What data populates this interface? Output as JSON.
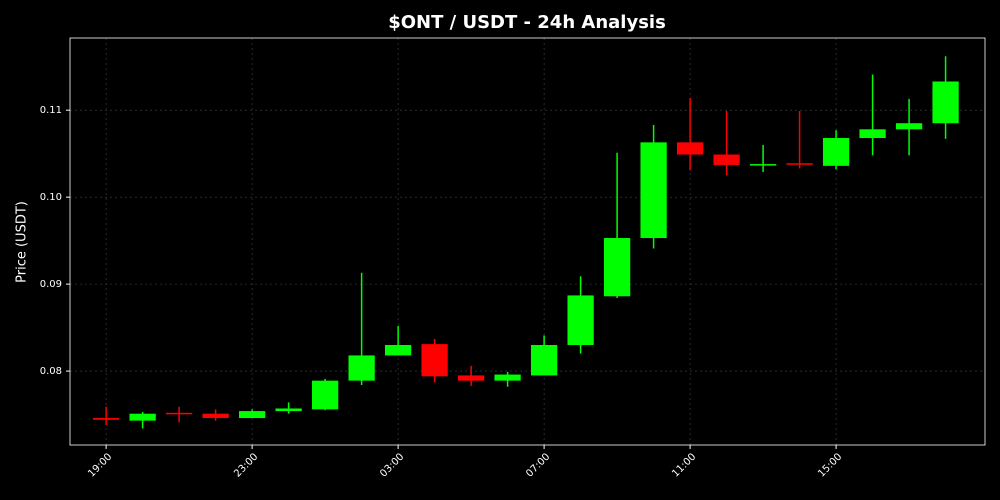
{
  "chart_data": {
    "type": "candlestick",
    "title": "$ONT / USDT - 24h Analysis",
    "y_label": "Price (USDT)",
    "categories": [
      "19:00",
      null,
      null,
      null,
      "23:00",
      null,
      null,
      null,
      "03:00",
      null,
      null,
      null,
      "07:00",
      null,
      null,
      null,
      "11:00",
      null,
      null,
      null,
      "15:00",
      null,
      null,
      null
    ],
    "series": [
      {
        "up_color": "#00ff00",
        "down_color": "#ff0000",
        "open": [
          0.0746,
          0.0743,
          0.0752,
          0.0751,
          0.0746,
          0.0754,
          0.0756,
          0.0789,
          0.0818,
          0.0831,
          0.0795,
          0.0789,
          0.0795,
          0.083,
          0.0886,
          0.0953,
          0.1063,
          0.1049,
          0.1037,
          0.1039,
          0.1036,
          0.1068,
          0.1078,
          0.1085
        ],
        "high": [
          0.0759,
          0.0753,
          0.0759,
          0.0756,
          0.0756,
          0.0764,
          0.0791,
          0.0913,
          0.0852,
          0.0837,
          0.0806,
          0.0799,
          0.0841,
          0.0909,
          0.1051,
          0.1083,
          0.1114,
          0.1099,
          0.106,
          0.1099,
          0.1077,
          0.1141,
          0.1113,
          0.1162
        ],
        "low": [
          0.0738,
          0.0734,
          0.0741,
          0.0743,
          0.0746,
          0.0751,
          0.0755,
          0.0784,
          0.0818,
          0.0787,
          0.0783,
          0.0782,
          0.0795,
          0.082,
          0.0884,
          0.0941,
          0.1031,
          0.1025,
          0.1029,
          0.1033,
          0.1032,
          0.1048,
          0.1048,
          0.1067
        ],
        "close": [
          0.0744,
          0.0751,
          0.0751,
          0.0746,
          0.0754,
          0.0757,
          0.0789,
          0.0818,
          0.083,
          0.0794,
          0.0789,
          0.0796,
          0.083,
          0.0887,
          0.0953,
          0.1063,
          0.1049,
          0.1037,
          0.1038,
          0.1038,
          0.1068,
          0.1078,
          0.1085,
          0.1133
        ]
      }
    ],
    "ylim": [
      0.0715,
      0.1183
    ],
    "yticks": [
      0.08,
      0.09,
      {
        "value": 0.1,
        "label": "0.10"
      },
      0.11
    ],
    "grid": true
  }
}
